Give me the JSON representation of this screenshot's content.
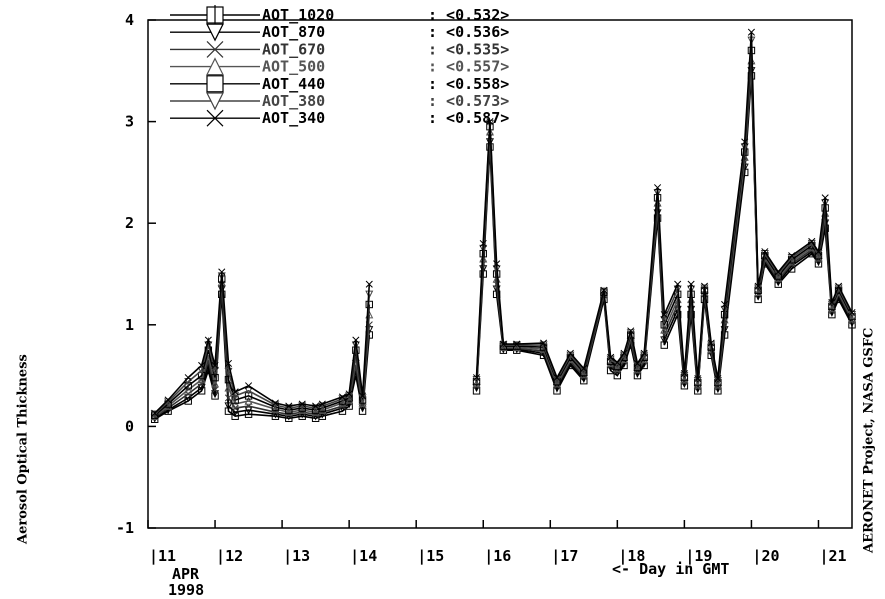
{
  "chart_data": {
    "type": "line",
    "title": "",
    "ylabel": "Aerosol Optical Thickness",
    "xlabel": "<- Day in GMT",
    "right_label": "AERONET Project, NASA GSFC",
    "month_label": "APR",
    "year_label": "1998",
    "ylim": [
      -1,
      4
    ],
    "xlim": [
      11,
      21.5
    ],
    "yticks": [
      "-1",
      "0",
      "1",
      "2",
      "3",
      "4"
    ],
    "xticks": [
      "11",
      "12",
      "13",
      "14",
      "15",
      "16",
      "17",
      "18",
      "19",
      "20",
      "21"
    ],
    "legend_position": "top-left",
    "legend": [
      {
        "label": "AOT_1020",
        "value": "<0.532>",
        "marker": "square-bar",
        "color": "#000000"
      },
      {
        "label": "AOT_870",
        "value": "<0.536>",
        "marker": "triangle-down",
        "color": "#000000"
      },
      {
        "label": "AOT_670",
        "value": "<0.535>",
        "marker": "x",
        "color": "#333333"
      },
      {
        "label": "AOT_500",
        "value": "<0.557>",
        "marker": "triangle-up",
        "color": "#555555"
      },
      {
        "label": "AOT_440",
        "value": "<0.558>",
        "marker": "square",
        "color": "#000000"
      },
      {
        "label": "AOT_380",
        "value": "<0.573>",
        "marker": "triangle-down",
        "color": "#444444"
      },
      {
        "label": "AOT_340",
        "value": "<0.587>",
        "marker": "x",
        "color": "#000000"
      }
    ],
    "x": [
      11.1,
      11.3,
      11.6,
      11.8,
      11.9,
      12.0,
      12.1,
      12.2,
      12.3,
      12.5,
      12.9,
      13.1,
      13.3,
      13.5,
      13.6,
      13.9,
      14.0,
      14.1,
      14.2,
      14.3,
      null,
      15.9,
      16.0,
      16.1,
      16.2,
      16.3,
      16.5,
      16.9,
      17.1,
      17.3,
      17.5,
      17.8,
      17.9,
      18.0,
      18.1,
      18.2,
      18.3,
      18.4,
      18.6,
      18.7,
      18.9,
      19.0,
      19.1,
      19.2,
      19.3,
      19.4,
      19.5,
      19.6,
      19.9,
      20.0,
      20.1,
      20.2,
      20.4,
      20.6,
      20.9,
      21.0,
      21.1,
      21.2,
      21.3,
      21.5
    ],
    "series": [
      {
        "name": "AOT_1020",
        "values": [
          0.07,
          0.15,
          0.25,
          0.35,
          0.55,
          0.3,
          1.3,
          0.15,
          0.1,
          0.12,
          0.1,
          0.08,
          0.1,
          0.08,
          0.1,
          0.15,
          0.2,
          0.5,
          0.15,
          0.9,
          null,
          0.35,
          1.5,
          2.75,
          1.3,
          0.75,
          0.75,
          0.7,
          0.35,
          0.6,
          0.45,
          1.25,
          0.55,
          0.5,
          0.6,
          0.8,
          0.5,
          0.6,
          2.05,
          0.8,
          1.1,
          0.4,
          1.1,
          0.35,
          1.25,
          0.7,
          0.35,
          0.9,
          2.5,
          3.45,
          1.25,
          1.6,
          1.4,
          1.55,
          1.7,
          1.6,
          1.95,
          1.1,
          1.25,
          1.0
        ]
      },
      {
        "name": "AOT_870",
        "values": [
          0.08,
          0.16,
          0.28,
          0.38,
          0.6,
          0.32,
          1.35,
          0.2,
          0.14,
          0.16,
          0.12,
          0.1,
          0.12,
          0.1,
          0.12,
          0.18,
          0.22,
          0.55,
          0.18,
          0.95,
          null,
          0.38,
          1.55,
          2.8,
          1.35,
          0.76,
          0.76,
          0.72,
          0.38,
          0.62,
          0.47,
          1.27,
          0.58,
          0.53,
          0.62,
          0.83,
          0.52,
          0.62,
          2.1,
          0.85,
          1.15,
          0.42,
          1.15,
          0.37,
          1.28,
          0.72,
          0.37,
          0.95,
          2.55,
          3.5,
          1.28,
          1.62,
          1.42,
          1.58,
          1.72,
          1.62,
          2.0,
          1.12,
          1.28,
          1.02
        ]
      },
      {
        "name": "AOT_670",
        "values": [
          0.09,
          0.18,
          0.32,
          0.42,
          0.65,
          0.36,
          1.4,
          0.28,
          0.18,
          0.2,
          0.14,
          0.12,
          0.14,
          0.12,
          0.14,
          0.2,
          0.24,
          0.6,
          0.2,
          1.0,
          null,
          0.4,
          1.6,
          2.85,
          1.4,
          0.77,
          0.77,
          0.74,
          0.4,
          0.64,
          0.49,
          1.29,
          0.6,
          0.55,
          0.64,
          0.85,
          0.54,
          0.64,
          2.15,
          0.9,
          1.2,
          0.44,
          1.2,
          0.39,
          1.3,
          0.74,
          0.39,
          1.0,
          2.6,
          3.55,
          1.3,
          1.64,
          1.44,
          1.6,
          1.74,
          1.64,
          2.05,
          1.14,
          1.3,
          1.04
        ]
      },
      {
        "name": "AOT_500",
        "values": [
          0.1,
          0.2,
          0.36,
          0.46,
          0.7,
          0.42,
          1.42,
          0.38,
          0.22,
          0.25,
          0.17,
          0.14,
          0.16,
          0.14,
          0.16,
          0.23,
          0.26,
          0.68,
          0.23,
          1.1,
          null,
          0.42,
          1.65,
          2.9,
          1.45,
          0.78,
          0.78,
          0.76,
          0.42,
          0.66,
          0.51,
          1.31,
          0.62,
          0.57,
          0.66,
          0.88,
          0.56,
          0.66,
          2.2,
          0.95,
          1.25,
          0.46,
          1.25,
          0.41,
          1.32,
          0.76,
          0.41,
          1.05,
          2.65,
          3.6,
          1.32,
          1.66,
          1.46,
          1.62,
          1.76,
          1.66,
          2.1,
          1.16,
          1.32,
          1.06
        ]
      },
      {
        "name": "AOT_440",
        "values": [
          0.11,
          0.22,
          0.4,
          0.5,
          0.75,
          0.48,
          1.45,
          0.46,
          0.26,
          0.3,
          0.19,
          0.16,
          0.18,
          0.16,
          0.18,
          0.25,
          0.28,
          0.75,
          0.26,
          1.2,
          null,
          0.44,
          1.7,
          2.95,
          1.5,
          0.79,
          0.79,
          0.78,
          0.44,
          0.68,
          0.53,
          1.32,
          0.64,
          0.59,
          0.68,
          0.9,
          0.58,
          0.68,
          2.25,
          1.0,
          1.3,
          0.48,
          1.3,
          0.43,
          1.34,
          0.78,
          0.43,
          1.1,
          2.7,
          3.7,
          1.34,
          1.68,
          1.48,
          1.64,
          1.78,
          1.68,
          2.15,
          1.18,
          1.34,
          1.08
        ]
      },
      {
        "name": "AOT_380",
        "values": [
          0.12,
          0.24,
          0.44,
          0.55,
          0.8,
          0.55,
          1.48,
          0.54,
          0.3,
          0.35,
          0.21,
          0.18,
          0.2,
          0.18,
          0.2,
          0.27,
          0.3,
          0.8,
          0.28,
          1.3,
          null,
          0.46,
          1.75,
          2.98,
          1.55,
          0.8,
          0.8,
          0.8,
          0.46,
          0.7,
          0.55,
          1.33,
          0.66,
          0.61,
          0.7,
          0.92,
          0.6,
          0.7,
          2.3,
          1.05,
          1.35,
          0.5,
          1.35,
          0.45,
          1.36,
          0.8,
          0.45,
          1.15,
          2.75,
          3.8,
          1.36,
          1.7,
          1.5,
          1.66,
          1.8,
          1.7,
          2.2,
          1.2,
          1.36,
          1.1
        ]
      },
      {
        "name": "AOT_340",
        "values": [
          0.13,
          0.26,
          0.48,
          0.6,
          0.85,
          0.6,
          1.52,
          0.62,
          0.34,
          0.4,
          0.23,
          0.2,
          0.22,
          0.2,
          0.22,
          0.29,
          0.32,
          0.85,
          0.3,
          1.4,
          null,
          0.48,
          1.8,
          3.0,
          1.6,
          0.81,
          0.81,
          0.82,
          0.48,
          0.72,
          0.57,
          1.34,
          0.68,
          0.63,
          0.72,
          0.94,
          0.62,
          0.72,
          2.35,
          1.1,
          1.4,
          0.52,
          1.4,
          0.47,
          1.38,
          0.82,
          0.47,
          1.2,
          2.8,
          3.88,
          1.38,
          1.72,
          1.52,
          1.68,
          1.82,
          1.72,
          2.25,
          1.22,
          1.38,
          1.12
        ]
      }
    ]
  }
}
